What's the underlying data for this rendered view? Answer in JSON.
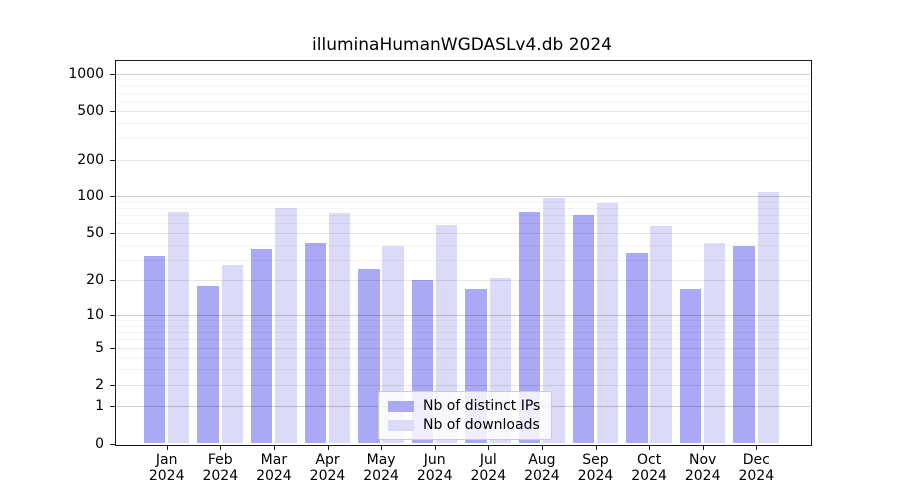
{
  "chart_data": {
    "type": "bar",
    "title": "illuminaHumanWGDASLv4.db 2024",
    "xlabel": "",
    "ylabel": "",
    "x_axis": {
      "categories": [
        "Jan",
        "Feb",
        "Mar",
        "Apr",
        "May",
        "Jun",
        "Jul",
        "Aug",
        "Sep",
        "Oct",
        "Nov",
        "Dec"
      ],
      "year_label": "2024"
    },
    "series": [
      {
        "name": "Nb of distinct IPs",
        "color": "#a9a9f5",
        "values": [
          32,
          18,
          37,
          41,
          25,
          20,
          17,
          74,
          70,
          34,
          17,
          39
        ]
      },
      {
        "name": "Nb of downloads",
        "color": "#dbdbf8",
        "values": [
          75,
          27,
          80,
          73,
          39,
          58,
          21,
          97,
          88,
          57,
          41,
          108
        ]
      }
    ],
    "y_axis": {
      "scale": "log1p",
      "ticks": [
        0,
        1,
        2,
        5,
        10,
        20,
        50,
        100,
        200,
        500,
        1000
      ],
      "major_gridlines": [
        1,
        10,
        100,
        1000
      ],
      "minor_gridlines": [
        2,
        5,
        20,
        50,
        200,
        500
      ],
      "faint_gridlines": [
        3,
        4,
        6,
        7,
        8,
        9,
        30,
        40,
        60,
        70,
        80,
        90,
        300,
        400,
        600,
        700,
        800,
        900
      ],
      "ylim": [
        0,
        1280
      ]
    },
    "legend": {
      "position": "bottom-center",
      "entries": [
        "Nb of distinct IPs",
        "Nb of downloads"
      ]
    },
    "style": {
      "grid_major": "rgba(0,0,0,0.19)",
      "grid_minor": "rgba(0,0,0,0.10)",
      "grid_faint": "rgba(0,0,0,0.045)",
      "axis_color": "#1a1a1a"
    }
  }
}
